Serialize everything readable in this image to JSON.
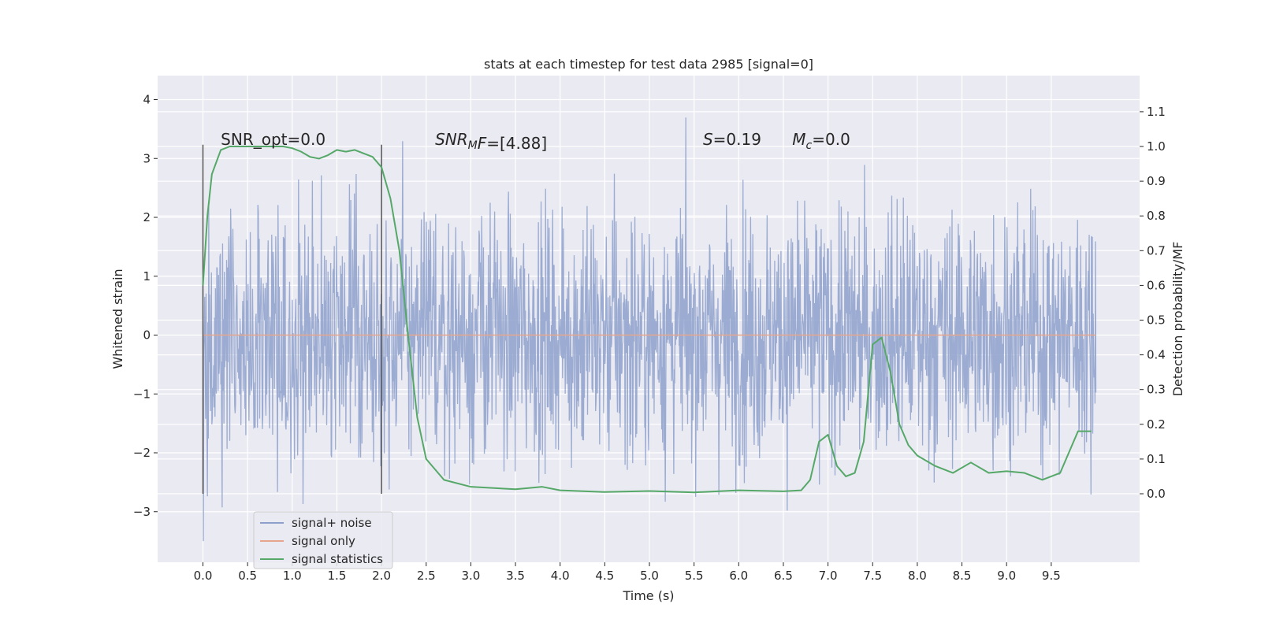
{
  "chart_data": {
    "type": "line",
    "title": "stats at each timestep for test data 2985 [signal=0]",
    "xlabel": "Time (s)",
    "ylabel": "Whitened strain",
    "y2label": "Detection probability/MF",
    "xlim": [
      -0.5,
      10.5
    ],
    "ylim": [
      -3.9,
      4.4
    ],
    "y2lim": [
      -0.2,
      1.2
    ],
    "x_ticks": [
      0.0,
      0.5,
      1.0,
      1.5,
      2.0,
      2.5,
      3.0,
      3.5,
      4.0,
      4.5,
      5.0,
      5.5,
      6.0,
      6.5,
      7.0,
      7.5,
      8.0,
      8.5,
      9.0,
      9.5
    ],
    "x_tick_labels": [
      "0.0",
      "0.5",
      "1.0",
      "1.5",
      "2.0",
      "2.5",
      "3.0",
      "3.5",
      "4.0",
      "4.5",
      "5.0",
      "5.5",
      "6.0",
      "6.5",
      "7.0",
      "7.5",
      "8.0",
      "8.5",
      "9.0",
      "9.5"
    ],
    "y_ticks": [
      -3,
      -2,
      -1,
      0,
      1,
      2,
      3,
      4
    ],
    "y_tick_labels": [
      "−3",
      "−2",
      "−1",
      "0",
      "1",
      "2",
      "3",
      "4"
    ],
    "y2_ticks": [
      0.0,
      0.1,
      0.2,
      0.3,
      0.4,
      0.5,
      0.6,
      0.7,
      0.8,
      0.9,
      1.0,
      1.1
    ],
    "y2_tick_labels": [
      "0.0",
      "0.1",
      "0.2",
      "0.3",
      "0.4",
      "0.5",
      "0.6",
      "0.7",
      "0.8",
      "0.9",
      "1.0",
      "1.1"
    ],
    "grid": true,
    "legend_position": "lower-left",
    "background_color": "#eaeaf2",
    "colors": {
      "signal_noise": "#8da0cb",
      "signal_only": "#e6a58c",
      "statistics": "#55a868",
      "window_lines": "#555555"
    },
    "annotations": [
      {
        "prefix": "SNR_opt=0.0",
        "sub": "",
        "suffix": "",
        "italic": false,
        "x": 0.2
      },
      {
        "prefix": "SNR",
        "sub": "M",
        "suffix": "F=[4.88]",
        "italic": true,
        "x": 2.6
      },
      {
        "prefix": "S",
        "sub": "",
        "suffix": "=0.19",
        "italic": true,
        "x": 5.6
      },
      {
        "prefix": "M",
        "sub": "c",
        "suffix": "=0.0",
        "italic": true,
        "x": 6.6
      }
    ],
    "window_lines_x": [
      0.0,
      2.0
    ],
    "series": [
      {
        "name": "signal+ noise",
        "axis": "left",
        "description_type": "noise",
        "x_range": [
          0.0,
          10.0
        ],
        "y_spread": [
          -3.5,
          4.05
        ]
      },
      {
        "name": "signal only",
        "axis": "left",
        "x": [
          0.0,
          10.0
        ],
        "y": [
          0.0,
          0.0
        ]
      },
      {
        "name": "signal statistics",
        "axis": "right",
        "x": [
          0.0,
          0.05,
          0.1,
          0.2,
          0.3,
          0.5,
          0.7,
          0.9,
          1.0,
          1.1,
          1.2,
          1.3,
          1.4,
          1.5,
          1.6,
          1.7,
          1.8,
          1.9,
          2.0,
          2.1,
          2.2,
          2.3,
          2.4,
          2.5,
          2.7,
          3.0,
          3.5,
          3.8,
          4.0,
          4.5,
          5.0,
          5.5,
          6.0,
          6.5,
          6.7,
          6.8,
          6.9,
          7.0,
          7.1,
          7.2,
          7.3,
          7.4,
          7.5,
          7.6,
          7.7,
          7.8,
          7.9,
          8.0,
          8.2,
          8.4,
          8.6,
          8.8,
          9.0,
          9.2,
          9.4,
          9.6,
          9.8,
          9.95
        ],
        "y": [
          0.6,
          0.8,
          0.92,
          0.99,
          1.0,
          1.0,
          1.0,
          1.0,
          0.995,
          0.985,
          0.97,
          0.965,
          0.975,
          0.99,
          0.985,
          0.99,
          0.98,
          0.97,
          0.94,
          0.85,
          0.7,
          0.45,
          0.22,
          0.1,
          0.04,
          0.02,
          0.013,
          0.02,
          0.01,
          0.005,
          0.008,
          0.004,
          0.01,
          0.007,
          0.01,
          0.04,
          0.15,
          0.17,
          0.08,
          0.05,
          0.06,
          0.15,
          0.43,
          0.45,
          0.35,
          0.2,
          0.14,
          0.11,
          0.08,
          0.06,
          0.09,
          0.06,
          0.065,
          0.06,
          0.04,
          0.06,
          0.18,
          0.18
        ]
      }
    ]
  }
}
